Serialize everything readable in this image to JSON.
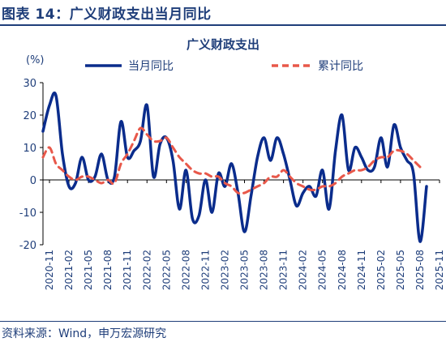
{
  "header": {
    "figure_title": "图表 14：广义财政支出当月同比"
  },
  "footer": {
    "source": "资料来源：Wind，申万宏源研究"
  },
  "colors": {
    "accent": "#1f3e7a",
    "series_monthly": "#0a2c8c",
    "series_cumulative": "#e8584a"
  },
  "chart_data": {
    "type": "line",
    "title": "广义财政支出",
    "ylabel": "(%)",
    "ylim": [
      -20,
      30
    ],
    "yticks": [
      -20,
      -10,
      0,
      10,
      20,
      30
    ],
    "legend_position": "top",
    "grid": false,
    "x": [
      "2020-10",
      "2020-11",
      "2020-12",
      "2021-01",
      "2021-02",
      "2021-03",
      "2021-04",
      "2021-05",
      "2021-06",
      "2021-07",
      "2021-08",
      "2021-09",
      "2021-10",
      "2021-11",
      "2021-12",
      "2022-01",
      "2022-02",
      "2022-03",
      "2022-04",
      "2022-05",
      "2022-06",
      "2022-07",
      "2022-08",
      "2022-09",
      "2022-10",
      "2022-11",
      "2022-12",
      "2023-01",
      "2023-02",
      "2023-03",
      "2023-04",
      "2023-05",
      "2023-06",
      "2023-07",
      "2023-08",
      "2023-09",
      "2023-10",
      "2023-11",
      "2023-12",
      "2024-01",
      "2024-02",
      "2024-03",
      "2024-04",
      "2024-05",
      "2024-06",
      "2024-07",
      "2024-08",
      "2024-09",
      "2024-10",
      "2024-11",
      "2024-12",
      "2025-01",
      "2025-02",
      "2025-03",
      "2025-04",
      "2025-05",
      "2025-06",
      "2025-07",
      "2025-08",
      "2025-09",
      "2025-10",
      "2025-11"
    ],
    "x_tick_labels": [
      "2020-11",
      "2021-02",
      "2021-05",
      "2021-08",
      "2021-11",
      "2022-02",
      "2022-05",
      "2022-08",
      "2022-11",
      "2023-02",
      "2023-05",
      "2023-08",
      "2023-11",
      "2024-02",
      "2024-05",
      "2024-08",
      "2024-11",
      "2025-02",
      "2025-05",
      "2025-08",
      "2025-11"
    ],
    "series": [
      {
        "name": "当月同比",
        "style": "solid",
        "values": [
          15,
          23,
          26,
          8,
          -2,
          -1,
          7,
          0,
          1,
          8,
          0,
          1,
          18,
          7,
          9,
          12,
          23,
          1,
          11,
          13,
          6,
          -9,
          3,
          -12,
          -11,
          0,
          -10,
          2,
          -2,
          5,
          -4,
          -16,
          -5,
          7,
          13,
          6,
          13,
          8,
          0,
          -8,
          -4,
          -2,
          -5,
          3,
          -9,
          9,
          20,
          3,
          10,
          7,
          3,
          4,
          13,
          4,
          17,
          10,
          6,
          2,
          -19,
          -2,
          null,
          null
        ],
        "__comment": ""
      },
      {
        "name": "累计同比",
        "style": "dashed",
        "values": [
          7,
          10,
          5,
          3,
          1,
          0,
          1,
          1,
          0,
          -1,
          0,
          -1,
          5,
          8,
          12,
          16,
          14,
          12,
          12,
          13,
          10,
          7,
          5,
          3,
          2,
          2,
          1,
          1,
          -1,
          -2,
          -4,
          -4,
          -3,
          -2,
          -1,
          1,
          1,
          3,
          1,
          -1,
          -2,
          -3,
          -3,
          -2,
          -2,
          -1,
          1,
          2,
          3,
          3,
          4,
          6,
          7,
          7,
          9,
          9,
          8,
          6,
          4,
          null,
          null,
          null
        ]
      }
    ]
  }
}
